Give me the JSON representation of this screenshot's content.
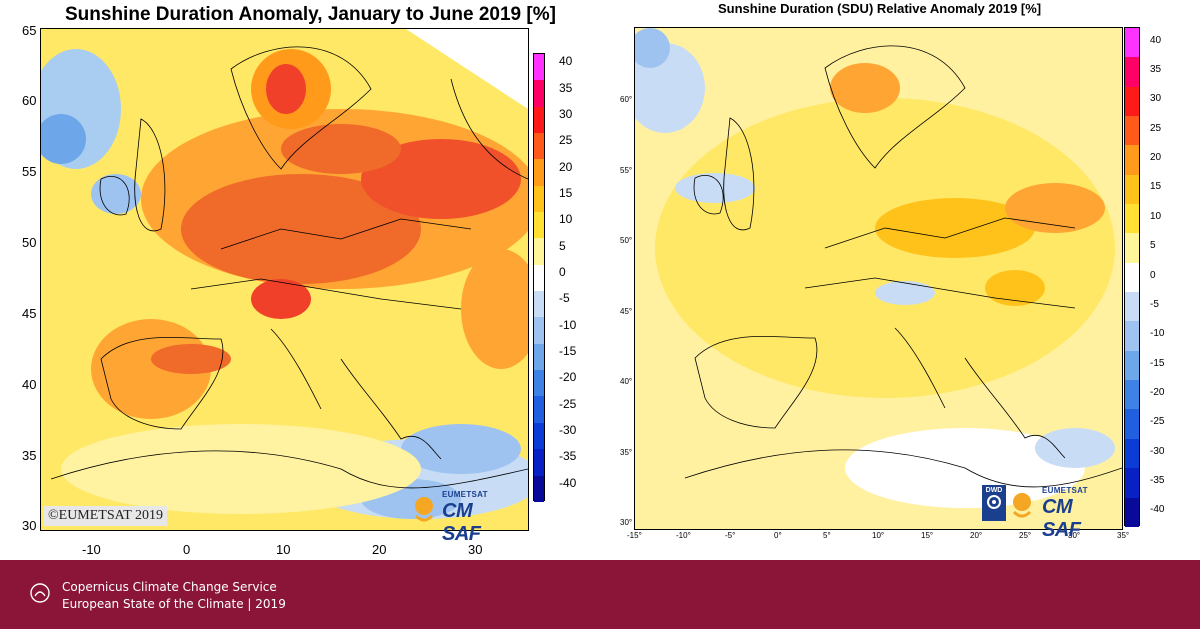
{
  "left_map": {
    "title": "Sunshine Duration Anomaly, January to June 2019 [%]",
    "lat_labels": [
      "65",
      "60",
      "55",
      "50",
      "45",
      "40",
      "35",
      "30"
    ],
    "lon_labels": [
      "-10",
      "0",
      "10",
      "20",
      "30"
    ],
    "colorbar_labels": [
      "40",
      "35",
      "30",
      "25",
      "20",
      "15",
      "10",
      "5",
      "0",
      "-5",
      "-10",
      "-15",
      "-20",
      "-25",
      "-30",
      "-35",
      "-40"
    ],
    "copyright": "©EUMETSAT 2019",
    "logo_top": "EUMETSAT",
    "logo_main": "CM SAF"
  },
  "right_map": {
    "title": "Sunshine Duration (SDU) Relative Anomaly 2019 [%]",
    "lat_labels": [
      "60°",
      "55°",
      "50°",
      "45°",
      "40°",
      "35°",
      "30°"
    ],
    "lon_labels": [
      "-15°",
      "-10°",
      "-5°",
      "0°",
      "5°",
      "10°",
      "15°",
      "20°",
      "25°",
      "30°",
      "35°"
    ],
    "colorbar_labels": [
      "40",
      "35",
      "30",
      "25",
      "20",
      "15",
      "10",
      "5",
      "0",
      "-5",
      "-10",
      "-15",
      "-20",
      "-25",
      "-30",
      "-35",
      "-40"
    ],
    "dwd_label": "DWD",
    "logo_top": "EUMETSAT",
    "logo_main": "CM SAF"
  },
  "colors": {
    "footer_bg": "#8a1538",
    "scale": [
      "#ff33ff",
      "#ff0066",
      "#ff1a1a",
      "#ff5a1a",
      "#ff9a1a",
      "#ffc21a",
      "#ffe033",
      "#fff599",
      "#ffffff",
      "#c8dcf5",
      "#9ec3f0",
      "#6ea6ea",
      "#3f82e6",
      "#1f5fe0",
      "#0b3cd6",
      "#0820c4",
      "#0a0a9a"
    ],
    "land_yellow": "#ffe866",
    "land_orange": "#ffa533",
    "land_red": "#f0402a",
    "land_pale": "#fff6b0",
    "cloudy_blue": "#a9cdf0"
  },
  "footer": {
    "line1": "Copernicus Climate Change Service",
    "line2": "European State of the Climate | 2019"
  }
}
